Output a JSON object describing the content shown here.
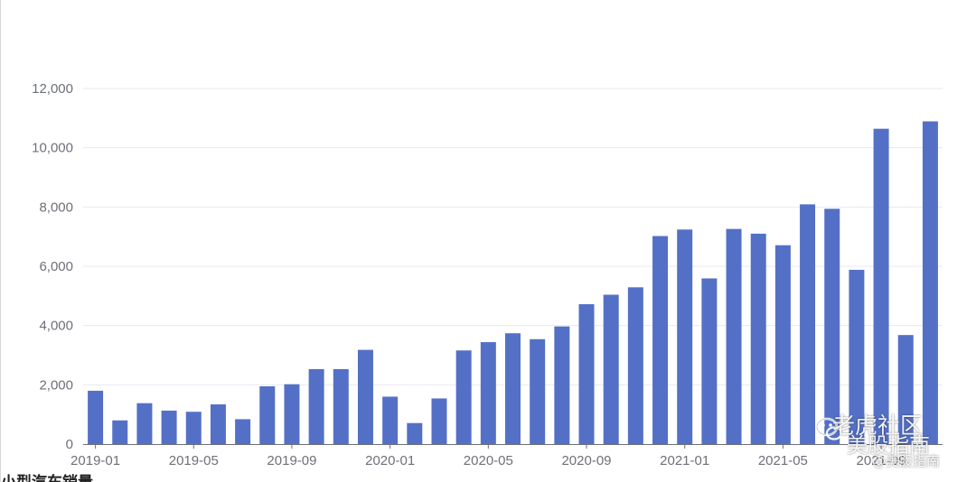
{
  "chart_data": {
    "type": "bar",
    "categories": [
      "2019-01",
      "2019-02",
      "2019-03",
      "2019-04",
      "2019-05",
      "2019-06",
      "2019-07",
      "2019-08",
      "2019-09",
      "2019-10",
      "2019-11",
      "2019-12",
      "2020-01",
      "2020-02",
      "2020-03",
      "2020-04",
      "2020-05",
      "2020-06",
      "2020-07",
      "2020-08",
      "2020-09",
      "2020-10",
      "2020-11",
      "2020-12",
      "2021-01",
      "2021-02",
      "2021-03",
      "2021-04",
      "2021-05",
      "2021-06",
      "2021-07",
      "2021-08",
      "2021-09",
      "2021-10",
      "2021-11"
    ],
    "x_tick_labels": [
      "2019-01",
      "2019-05",
      "2019-09",
      "2020-01",
      "2020-05",
      "2020-09",
      "2021-01",
      "2021-05",
      "2021-09"
    ],
    "values": [
      1800,
      800,
      1380,
      1130,
      1090,
      1340,
      840,
      1950,
      2020,
      2530,
      2530,
      3180,
      1600,
      710,
      1540,
      3160,
      3440,
      3740,
      3540,
      3970,
      4720,
      5040,
      5290,
      7020,
      7240,
      5590,
      7260,
      7100,
      6710,
      8090,
      7940,
      5880,
      10640,
      3680,
      10890
    ],
    "ylim": [
      0,
      12000
    ],
    "y_ticks": [
      "0",
      "2,000",
      "4,000",
      "6,000",
      "8,000",
      "10,000",
      "12,000"
    ],
    "title": "",
    "xlabel": "",
    "ylabel": "",
    "grid": true,
    "legend": "none",
    "colors": {
      "bar": "#5470c6",
      "grid": "#e6e9f2",
      "axis_text": "#6e7079"
    }
  },
  "watermark": {
    "line1": "老虎社区",
    "line2": "美股指南",
    "line3": "@美股指南",
    "icon": "wechat-icon"
  },
  "footer_text": "小型汽车销量"
}
